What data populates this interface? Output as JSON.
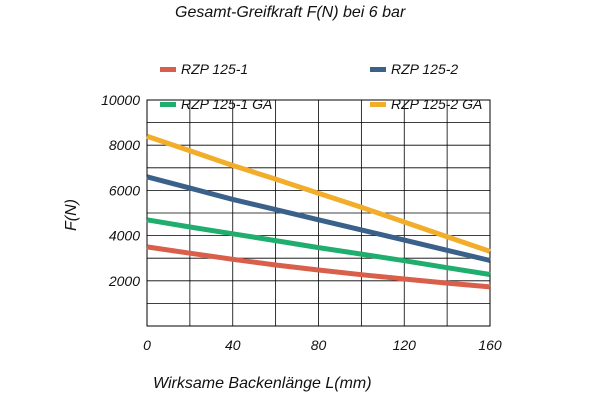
{
  "chart_data": {
    "type": "line",
    "title": "Gesamt-Greifkraft F(N) bei 6 bar",
    "xlabel": "Wirksame Backenlänge L(mm)",
    "ylabel": "F(N)",
    "xlim": [
      0,
      160
    ],
    "ylim": [
      0,
      10000
    ],
    "x_ticks": [
      0,
      40,
      80,
      120,
      160
    ],
    "y_ticks": [
      2000,
      4000,
      6000,
      8000,
      10000
    ],
    "x_tick_labels": [
      "0",
      "40",
      "80",
      "120",
      "160"
    ],
    "y_tick_labels": [
      "2000",
      "4000",
      "6000",
      "8000",
      "10000"
    ],
    "grid": true,
    "legend_position": "top",
    "series": [
      {
        "name": "RZP 125-1",
        "color": "#d95f4b",
        "x": [
          0,
          20,
          40,
          60,
          80,
          100,
          120,
          140,
          160
        ],
        "y": [
          3500,
          3220,
          2950,
          2700,
          2480,
          2270,
          2080,
          1900,
          1730
        ]
      },
      {
        "name": "RZP 125-2",
        "color": "#3a6189",
        "x": [
          0,
          20,
          40,
          60,
          80,
          100,
          120,
          140,
          160
        ],
        "y": [
          6600,
          6100,
          5600,
          5150,
          4700,
          4250,
          3800,
          3350,
          2900
        ]
      },
      {
        "name": "RZP 125-1 GA",
        "color": "#1fae6d",
        "x": [
          0,
          20,
          40,
          60,
          80,
          100,
          120,
          140,
          160
        ],
        "y": [
          4700,
          4380,
          4080,
          3780,
          3470,
          3180,
          2890,
          2580,
          2280
        ]
      },
      {
        "name": "RZP 125-2 GA",
        "color": "#f2ad2a",
        "x": [
          0,
          20,
          40,
          60,
          80,
          100,
          120,
          140,
          160
        ],
        "y": [
          8400,
          7750,
          7100,
          6500,
          5870,
          5250,
          4600,
          3950,
          3300
        ]
      }
    ]
  }
}
